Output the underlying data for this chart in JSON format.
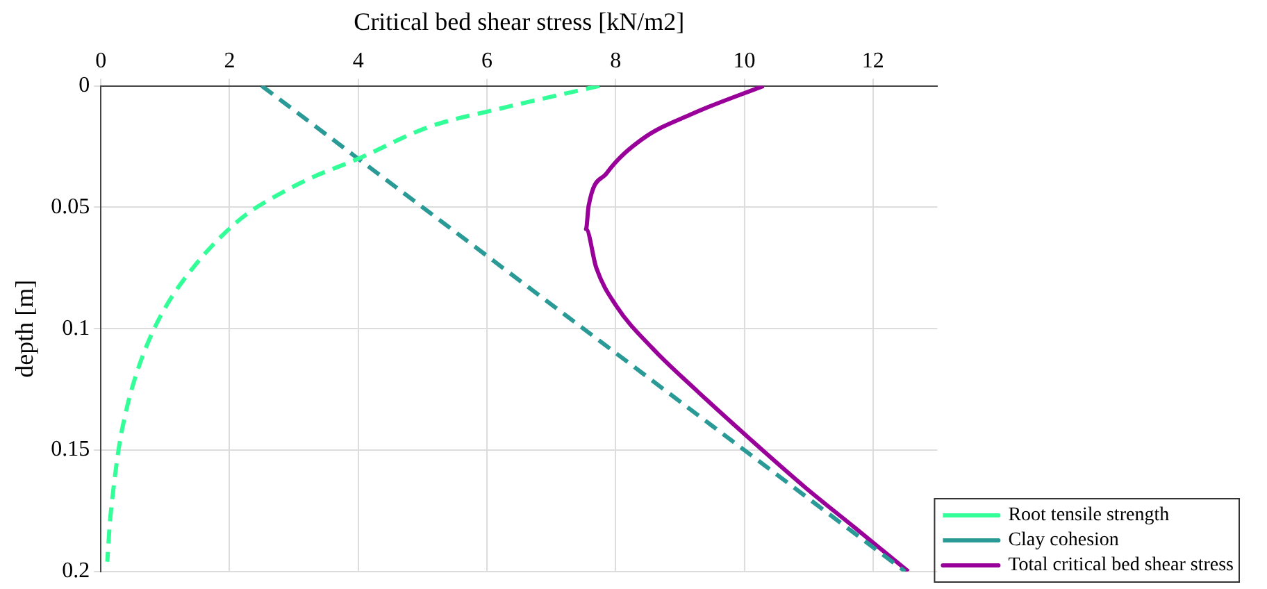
{
  "chart_data": {
    "type": "line",
    "xlabel": "Critical bed shear stress [kN/m2]",
    "ylabel": "depth [m]",
    "xlim": [
      0,
      13
    ],
    "xticks": [
      0,
      2,
      4,
      6,
      8,
      10,
      12
    ],
    "ylim": [
      0.2,
      0
    ],
    "yticks": [
      0,
      0.05,
      0.1,
      0.15,
      0.2
    ],
    "grid": true,
    "legend": "bottom right",
    "marker": "none",
    "series": [
      {
        "name": "Root tensile strength",
        "color": "#33ff99",
        "line_style": "dashed",
        "x": [
          7.75,
          6.2,
          5.09,
          4.0,
          3.26,
          2.78,
          2.31,
          1.91,
          1.43,
          1.03,
          0.76,
          0.56,
          0.4,
          0.28,
          0.2,
          0.14,
          0.1
        ],
        "values": [
          0,
          0.0094,
          0.017,
          0.03,
          0.038,
          0.0445,
          0.052,
          0.061,
          0.075,
          0.09,
          0.104,
          0.118,
          0.133,
          0.149,
          0.165,
          0.18,
          0.196
        ]
      },
      {
        "name": "Clay cohesion",
        "color": "#2a9a96",
        "line_style": "dashed",
        "x": [
          2.5,
          12.5
        ],
        "values": [
          0,
          0.2
        ]
      },
      {
        "name": "Total critical bed shear stress",
        "color": "#990099",
        "line_style": "solid",
        "x": [
          10.3,
          9.2,
          8.41,
          7.86,
          7.58,
          7.54,
          7.7,
          8.01,
          8.57,
          9.28,
          10.07,
          10.93,
          11.72,
          12.55
        ],
        "values": [
          0,
          0.0114,
          0.022,
          0.036,
          0.0495,
          0.059,
          0.075,
          0.0906,
          0.108,
          0.126,
          0.145,
          0.165,
          0.182,
          0.2
        ]
      }
    ]
  }
}
